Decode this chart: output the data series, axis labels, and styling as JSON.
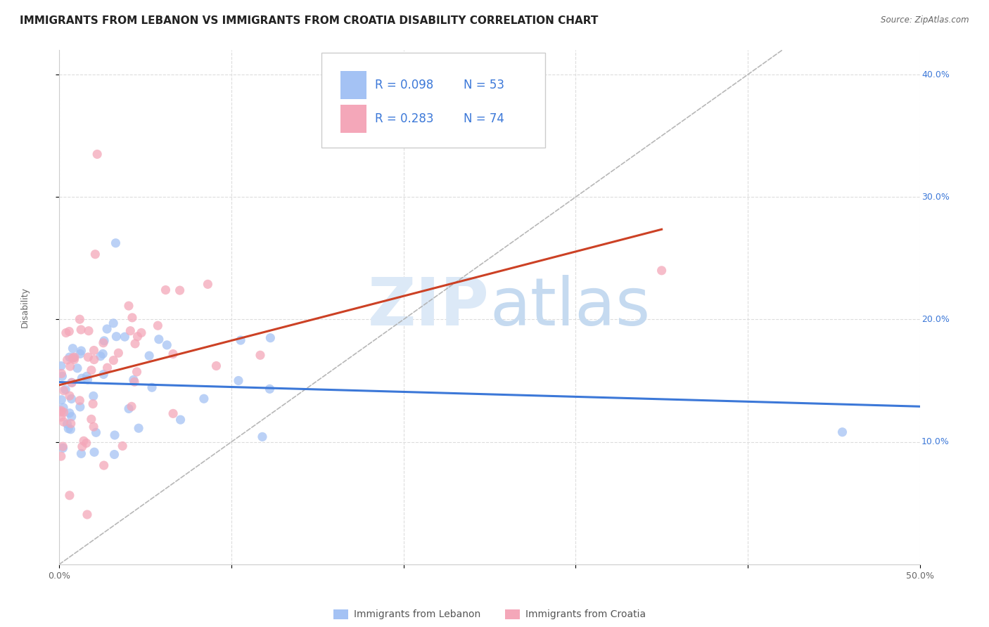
{
  "title": "IMMIGRANTS FROM LEBANON VS IMMIGRANTS FROM CROATIA DISABILITY CORRELATION CHART",
  "source": "Source: ZipAtlas.com",
  "ylabel": "Disability",
  "xlim": [
    0,
    0.5
  ],
  "ylim": [
    0,
    0.42
  ],
  "lebanon_color": "#a4c2f4",
  "croatia_color": "#f4a7b9",
  "lebanon_line_color": "#3c78d8",
  "croatia_line_color": "#cc4125",
  "legend_text_color": "#3c78d8",
  "watermark_zip": "ZIP",
  "watermark_atlas": "atlas",
  "watermark_color": "#dce9f7",
  "watermark_atlas_color": "#b8cfe8",
  "legend_R_lebanon": "R = 0.098",
  "legend_N_lebanon": "N = 53",
  "legend_R_croatia": "R = 0.283",
  "legend_N_croatia": "N = 74",
  "background_color": "#ffffff",
  "grid_color": "#cccccc",
  "title_fontsize": 11,
  "axis_fontsize": 9,
  "tick_fontsize": 9,
  "right_tick_color": "#3c78d8"
}
